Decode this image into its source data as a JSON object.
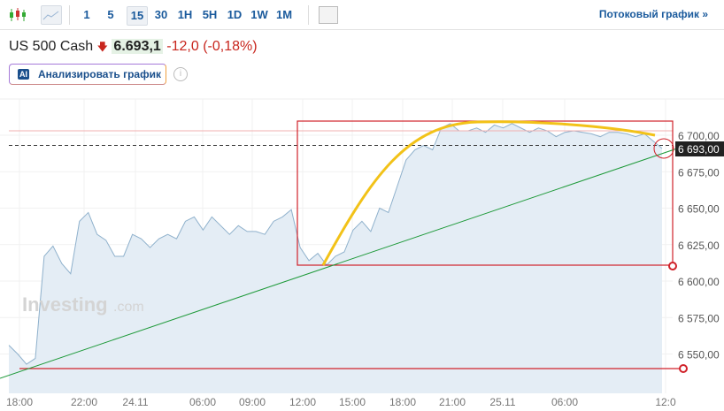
{
  "toolbar": {
    "intervals": [
      "1",
      "5",
      "15",
      "30",
      "1H",
      "5H",
      "1D",
      "1W",
      "1M"
    ],
    "selected": "15",
    "stream_label": "Потоковый график »"
  },
  "instrument": {
    "name": "US 500 Cash",
    "price": "6.693,1",
    "change": "-12,0",
    "change_pct": "(-0,18%)",
    "direction": "down"
  },
  "ai_button": {
    "icon": "AI",
    "label": "Анализировать график"
  },
  "watermark": {
    "brand": "Investing",
    "suffix": ".com"
  },
  "chart_data": {
    "type": "area",
    "y_ticks": [
      "6 700,00",
      "6 675,00",
      "6 650,00",
      "6 625,00",
      "6 600,00",
      "6 575,00",
      "6 550,00"
    ],
    "y_tick_values": [
      6700,
      6675,
      6650,
      6625,
      6600,
      6575,
      6550
    ],
    "x_ticks": [
      "18:00",
      "22:00",
      "24.11",
      "06:00",
      "09:00",
      "12:00",
      "15:00",
      "18:00",
      "21:00",
      "25.11",
      "06:00",
      "12:0"
    ],
    "current_price_label": "6 693,00",
    "current_price": 6693,
    "ylim": [
      6530,
      6715
    ],
    "values": [
      6556,
      6550,
      6543,
      6547,
      6617,
      6624,
      6612,
      6605,
      6641,
      6647,
      6632,
      6628,
      6617,
      6617,
      6632,
      6629,
      6623,
      6629,
      6632,
      6629,
      6641,
      6644,
      6635,
      6644,
      6638,
      6632,
      6638,
      6634,
      6634,
      6632,
      6641,
      6644,
      6649,
      6623,
      6614,
      6619,
      6611,
      6617,
      6620,
      6635,
      6641,
      6634,
      6650,
      6647,
      6665,
      6683,
      6690,
      6693,
      6690,
      6705,
      6708,
      6703,
      6703,
      6705,
      6702,
      6707,
      6705,
      6708,
      6705,
      6702,
      6705,
      6703,
      6699,
      6702,
      6703,
      6702,
      6701,
      6699,
      6702,
      6702,
      6701,
      6699,
      6701,
      6696,
      6691
    ],
    "colors": {
      "line": "#8fb1cc",
      "fill": "#e4edf5",
      "box": "#d0222a",
      "trend": "#1f9a3a",
      "curve": "#f2c218"
    }
  }
}
